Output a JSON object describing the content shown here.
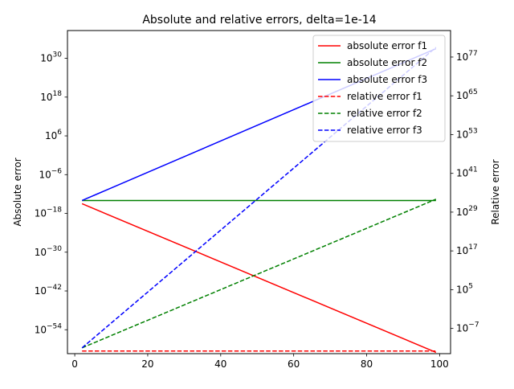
{
  "chart_data": {
    "type": "line",
    "title": "Absolute and relative errors, delta=1e-14",
    "xlabel": "",
    "ylabel": "Absolute error",
    "y2label": "Relative error",
    "xlim": [
      -2,
      103
    ],
    "x_ticks": [
      0,
      20,
      40,
      60,
      80,
      100
    ],
    "x_tick_labels": [
      "0",
      "20",
      "40",
      "60",
      "80",
      "100"
    ],
    "y_scale": "log",
    "ylim_log10": [
      -61.4,
      38.6
    ],
    "y_ticks_log10": [
      -54,
      -42,
      -30,
      -18,
      -6,
      6,
      18,
      30
    ],
    "y_tick_labels": [
      {
        "base": "10",
        "exp": "−54"
      },
      {
        "base": "10",
        "exp": "−42"
      },
      {
        "base": "10",
        "exp": "−30"
      },
      {
        "base": "10",
        "exp": "−18"
      },
      {
        "base": "10",
        "exp": "−6"
      },
      {
        "base": "10",
        "exp": "6"
      },
      {
        "base": "10",
        "exp": "18"
      },
      {
        "base": "10",
        "exp": "30"
      }
    ],
    "y2_scale": "log",
    "y2lim_log10": [
      -14.8,
      85.2
    ],
    "y2_ticks_log10": [
      -7,
      5,
      17,
      29,
      41,
      53,
      65,
      77
    ],
    "y2_tick_labels": [
      {
        "base": "10",
        "exp": "−7"
      },
      {
        "base": "10",
        "exp": "5"
      },
      {
        "base": "10",
        "exp": "17"
      },
      {
        "base": "10",
        "exp": "29"
      },
      {
        "base": "10",
        "exp": "41"
      },
      {
        "base": "10",
        "exp": "53"
      },
      {
        "base": "10",
        "exp": "65"
      },
      {
        "base": "10",
        "exp": "77"
      }
    ],
    "legend_position": "upper right",
    "series": [
      {
        "name": "absolute error f1",
        "axis": "left",
        "color": "#ff0000",
        "dash": "solid",
        "x": [
          2,
          99
        ],
        "y_log10": [
          -15,
          -61
        ]
      },
      {
        "name": "absolute error f2",
        "axis": "left",
        "color": "#008000",
        "dash": "solid",
        "x": [
          2,
          99
        ],
        "y_log10": [
          -14,
          -14
        ]
      },
      {
        "name": "absolute error f3",
        "axis": "left",
        "color": "#0000ff",
        "dash": "solid",
        "x": [
          2,
          99
        ],
        "y_log10": [
          -14,
          33
        ]
      },
      {
        "name": "relative error f1",
        "axis": "right",
        "color": "#ff0000",
        "dash": "dashed",
        "x": [
          2,
          99
        ],
        "y_log10": [
          -14,
          -14
        ]
      },
      {
        "name": "relative error f2",
        "axis": "right",
        "color": "#008000",
        "dash": "dashed",
        "x": [
          2,
          99
        ],
        "y_log10": [
          -13,
          33
        ]
      },
      {
        "name": "relative error f3",
        "axis": "right",
        "color": "#0000ff",
        "dash": "dashed",
        "x": [
          2,
          99
        ],
        "y_log10": [
          -13,
          80
        ]
      }
    ]
  }
}
